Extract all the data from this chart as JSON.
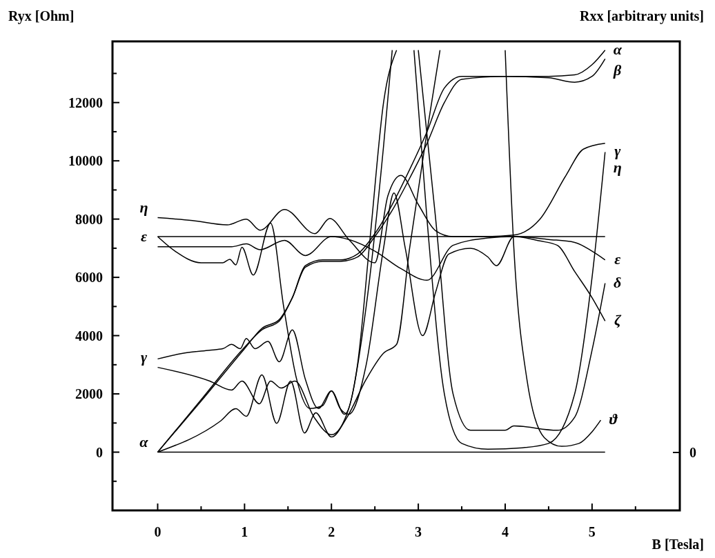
{
  "chart_data": {
    "type": "line",
    "xlabel": "B [Tesla]",
    "ylabel": "Ryx [Ohm]",
    "y2label": "Rxx [arbitrary units]",
    "xlim": [
      -0.52,
      6.01
    ],
    "ylim": [
      -2000,
      14100
    ],
    "annotations": [
      "0"
    ],
    "xticks": [
      0,
      {
        "value": 0.5,
        "label": null
      },
      1,
      {
        "value": 1.5,
        "label": null
      },
      2,
      {
        "value": 2.5,
        "label": null
      },
      3,
      {
        "value": 3.5,
        "label": null
      },
      4,
      {
        "value": 4.5,
        "label": null
      },
      5,
      {
        "value": 5.5,
        "label": null
      }
    ],
    "yticks": [
      {
        "value": -1000,
        "label": null
      },
      0,
      {
        "value": 1000,
        "label": null
      },
      2000,
      {
        "value": 3000,
        "label": null
      },
      4000,
      {
        "value": 5000,
        "label": null
      },
      6000,
      {
        "value": 7000,
        "label": null
      },
      8000,
      {
        "value": 9000,
        "label": null
      },
      10000,
      {
        "value": 11000,
        "label": null
      },
      12000,
      {
        "value": 13000,
        "label": null
      }
    ],
    "grid": false,
    "line_style": "solid",
    "series": [
      {
        "name": "α",
        "color": "#000000",
        "x": [
          0,
          0.5,
          1,
          1.2,
          1.4,
          1.55,
          1.7,
          1.9,
          2.1,
          2.3,
          2.5,
          2.7,
          2.9,
          3.1,
          3.3,
          3.5,
          4,
          4.5,
          4.8,
          5,
          5.15
        ],
        "values": [
          0,
          1800,
          3600,
          4200,
          4500,
          5300,
          6400,
          6600,
          6600,
          6800,
          7500,
          8500,
          9700,
          11000,
          12500,
          12900,
          12900,
          12900,
          12950,
          13300,
          13800
        ]
      },
      {
        "name": "β",
        "color": "#000000",
        "x": [
          0,
          0.5,
          1,
          1.2,
          1.4,
          1.55,
          1.7,
          1.9,
          2.1,
          2.3,
          2.5,
          2.7,
          2.9,
          3.1,
          3.3,
          3.5,
          4,
          4.5,
          4.8,
          5,
          5.15
        ],
        "values": [
          0,
          1750,
          3550,
          4250,
          4550,
          5300,
          6350,
          6550,
          6550,
          6700,
          7400,
          8300,
          9400,
          10600,
          12000,
          12800,
          12900,
          12850,
          12700,
          12900,
          13500
        ]
      },
      {
        "name": "γ",
        "color": "#000000",
        "x": [
          0,
          0.6,
          0.85,
          0.97,
          1.17,
          1.3,
          1.42,
          1.58,
          1.8,
          2.0,
          2.2,
          2.4,
          2.6,
          2.7,
          2.82,
          2.95,
          3.1,
          3.3,
          3.5,
          3.8,
          4.2,
          4.5,
          4.8,
          5.0,
          5.15
        ],
        "values": [
          2910,
          2440,
          2130,
          2440,
          1660,
          2440,
          2200,
          2440,
          1200,
          600,
          1500,
          5000,
          10500,
          13800,
          null,
          13800,
          8000,
          2000,
          300,
          100,
          150,
          300,
          2000,
          6000,
          10300
        ]
      },
      {
        "name": "δ",
        "color": "#000000",
        "x": [
          0,
          0.3,
          0.6,
          0.75,
          0.85,
          0.95,
          1.02,
          1.12,
          1.27,
          1.4,
          1.55,
          1.7,
          1.85,
          2.0,
          2.15,
          2.3,
          2.45,
          2.6,
          2.75,
          2.85,
          3.0,
          3.2,
          3.4,
          3.6,
          4.0,
          4.1,
          4.6,
          4.8,
          5.0,
          5.15
        ],
        "values": [
          3200,
          3400,
          3500,
          3550,
          3700,
          3550,
          3900,
          3550,
          3800,
          3100,
          4200,
          2500,
          1500,
          2100,
          1300,
          3000,
          7500,
          12000,
          13800,
          null,
          13800,
          8000,
          2000,
          750,
          750,
          900,
          750,
          1200,
          3500,
          5800
        ]
      },
      {
        "name": "ε",
        "color": "#000000",
        "x": [
          0,
          0.5,
          0.85,
          1.02,
          1.18,
          1.46,
          1.7,
          2.0,
          2.2,
          2.5,
          2.8,
          3.1,
          3.4,
          3.8,
          4.1,
          4.5,
          4.8,
          5.0,
          5.15
        ],
        "values": [
          7050,
          7050,
          7050,
          7150,
          6950,
          7270,
          6750,
          7400,
          7300,
          6900,
          6300,
          5900,
          7100,
          7350,
          7400,
          7300,
          7200,
          6900,
          6600
        ]
      },
      {
        "name": "ζ",
        "color": "#000000",
        "x": [
          0,
          0.2,
          0.5,
          0.75,
          0.83,
          0.9,
          0.97,
          1.1,
          1.3,
          1.45,
          1.6,
          1.75,
          1.9,
          2.0,
          2.1,
          2.2,
          2.4,
          2.6,
          2.72,
          2.85,
          3.05,
          3.2,
          3.35,
          3.6,
          3.8,
          3.9,
          4.1,
          4.4,
          4.6,
          4.8,
          5.0,
          5.15
        ],
        "values": [
          7400,
          6900,
          6500,
          6500,
          6620,
          6430,
          7030,
          6080,
          7860,
          5000,
          2500,
          1500,
          1600,
          2100,
          1500,
          1300,
          3000,
          7000,
          8900,
          7000,
          4000,
          5500,
          6800,
          7000,
          6700,
          6400,
          7400,
          7250,
          7100,
          6200,
          5300,
          4500
        ]
      },
      {
        "name": "η",
        "color": "#000000",
        "x": [
          0,
          0.4,
          0.8,
          1.02,
          1.18,
          1.46,
          1.81,
          1.98,
          2.2,
          2.5,
          2.65,
          2.8,
          3.0,
          3.2,
          3.4,
          3.8,
          4.1,
          4.4,
          4.7,
          4.9,
          5.15
        ],
        "values": [
          8050,
          7950,
          7800,
          8000,
          7620,
          8330,
          7500,
          8020,
          7300,
          6500,
          8800,
          9500,
          8500,
          7600,
          7400,
          7400,
          7450,
          8000,
          9500,
          10400,
          10600
        ]
      },
      {
        "name": "ϑ",
        "color": "#000000",
        "x": [
          0,
          0.72,
          0.9,
          1.02,
          1.2,
          1.37,
          1.53,
          1.69,
          1.82,
          2.0,
          2.18,
          2.4,
          2.6,
          2.75,
          2.9,
          3.1,
          3.25,
          3.6,
          4.0,
          4.1,
          4.25,
          4.45,
          4.65,
          4.85,
          5.0,
          5.1
        ],
        "values": [
          0,
          1060,
          1490,
          1230,
          2650,
          990,
          2440,
          660,
          1350,
          520,
          1200,
          2500,
          3400,
          3700,
          7000,
          11000,
          13800,
          null,
          13800,
          7000,
          2500,
          500,
          200,
          300,
          700,
          1100
        ]
      },
      {
        "color": "#000000",
        "x": [
          0,
          5.15
        ],
        "values": [
          7400,
          7400
        ]
      },
      {
        "color": "#000000",
        "x": [
          0,
          5.15
        ],
        "values": [
          0,
          0
        ]
      }
    ]
  }
}
